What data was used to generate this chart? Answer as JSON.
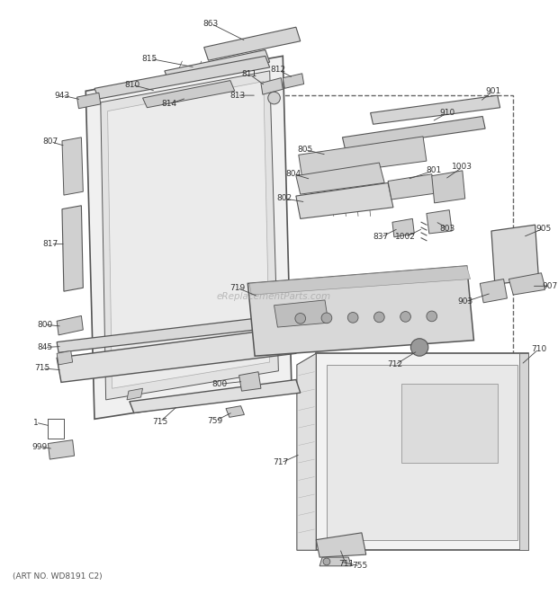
{
  "art_no": "(ART NO. WD8191 C2)",
  "watermark": "eReplacementParts.com",
  "bg_color": "#ffffff",
  "line_color": "#555555",
  "fig_width": 6.2,
  "fig_height": 6.61,
  "dpi": 100
}
